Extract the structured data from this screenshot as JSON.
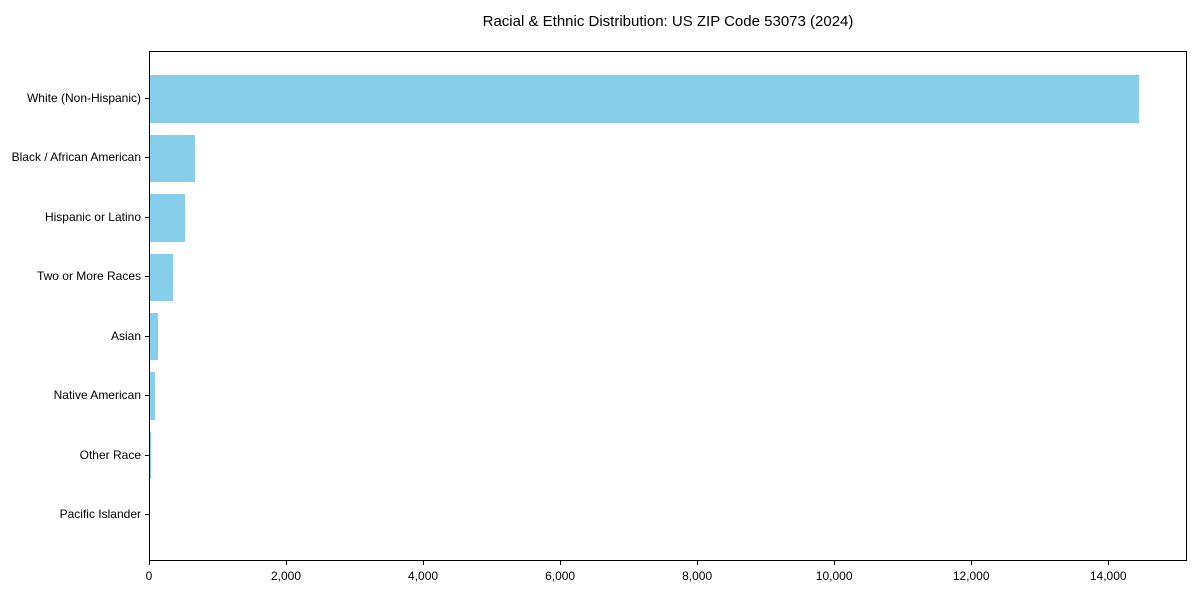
{
  "title": "Racial & Ethnic Distribution: US ZIP Code 53073 (2024)",
  "colors": {
    "bar": "#87CEEB",
    "axis": "#000000",
    "text": "#000000",
    "background": "#ffffff"
  },
  "chart_data": {
    "type": "bar",
    "orientation": "horizontal",
    "title": "Racial & Ethnic Distribution: US ZIP Code 53073 (2024)",
    "xlabel": "",
    "ylabel": "",
    "grid": false,
    "legend": false,
    "frame": "full-box",
    "categories": [
      "White (Non-Hispanic)",
      "Black / African American",
      "Hispanic or Latino",
      "Two or More Races",
      "Asian",
      "Native American",
      "Other Race",
      "Pacific Islander"
    ],
    "values": [
      14430,
      660,
      510,
      330,
      110,
      70,
      15,
      0
    ],
    "xlim": [
      0,
      15150
    ],
    "x_ticks": [
      {
        "value": 0,
        "label": "0"
      },
      {
        "value": 2000,
        "label": "2,000"
      },
      {
        "value": 4000,
        "label": "4,000"
      },
      {
        "value": 6000,
        "label": "6,000"
      },
      {
        "value": 8000,
        "label": "8,000"
      },
      {
        "value": 10000,
        "label": "10,000"
      },
      {
        "value": 12000,
        "label": "12,000"
      },
      {
        "value": 14000,
        "label": "14,000"
      }
    ],
    "bar_color": "#87CEEB"
  }
}
